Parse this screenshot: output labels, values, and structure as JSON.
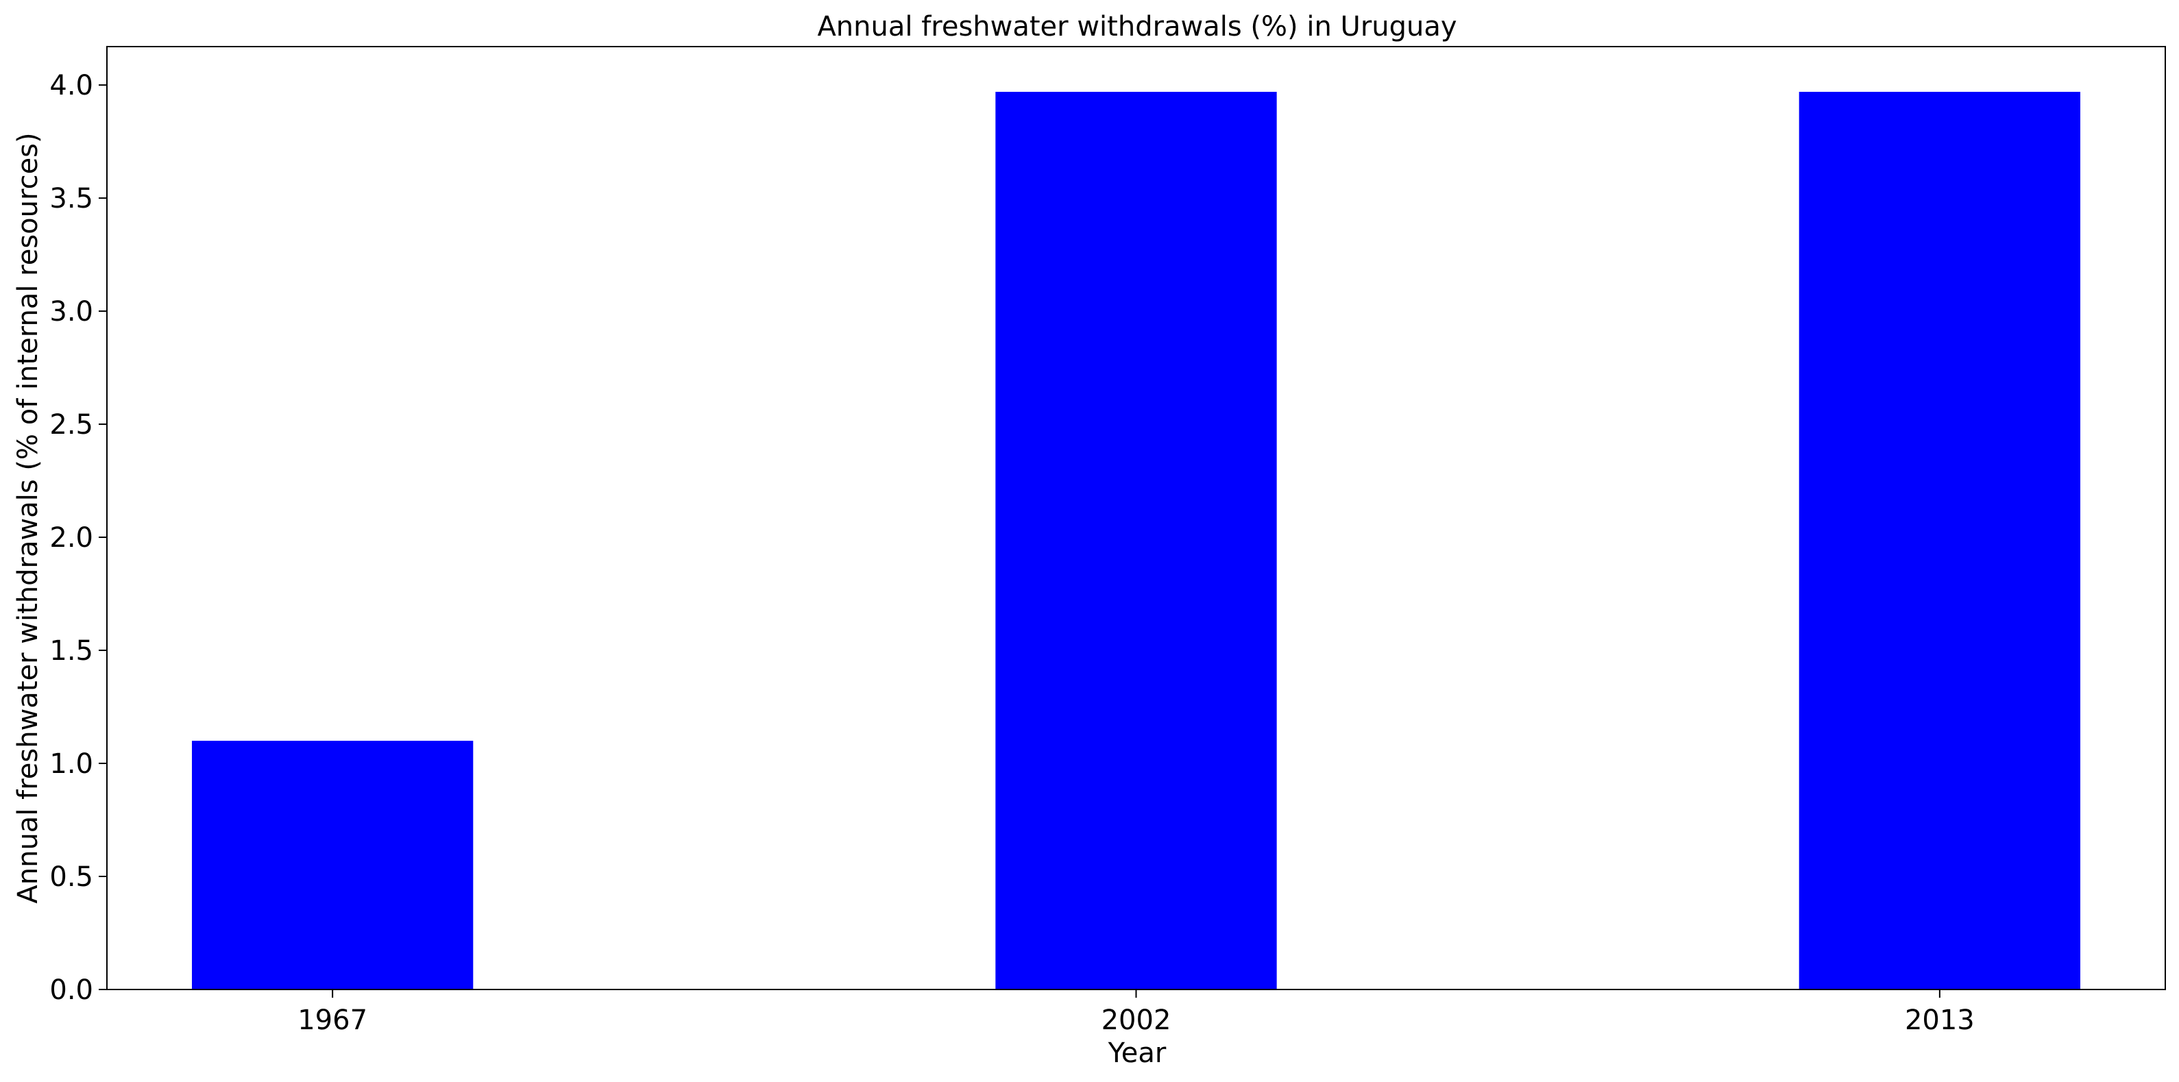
{
  "chart_data": {
    "type": "bar",
    "title": "Annual freshwater withdrawals (%) in Uruguay",
    "xlabel": "Year",
    "ylabel": "Annual freshwater withdrawals (% of internal resources)",
    "categories": [
      "1967",
      "2002",
      "2013"
    ],
    "values": [
      1.1,
      3.97,
      3.97
    ],
    "ylim": [
      0,
      4.17
    ],
    "yticks": [
      "0.0",
      "0.5",
      "1.0",
      "1.5",
      "2.0",
      "2.5",
      "3.0",
      "3.5",
      "4.0"
    ],
    "bar_color": "#0000ff",
    "grid": false,
    "legend": "none"
  }
}
